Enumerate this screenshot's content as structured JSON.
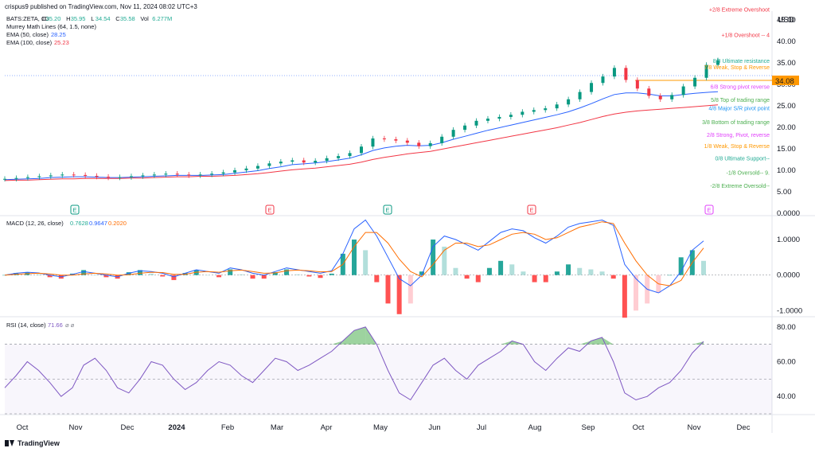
{
  "header": {
    "publisher_line": "crispus9 published on TradingView.com, Nov 11, 2024 08:02 UTC+3"
  },
  "legend": {
    "symbol": "BATS:ZETA, 1D",
    "ohlc": [
      {
        "label": "O",
        "value": "35.20"
      },
      {
        "label": "H",
        "value": "35.95"
      },
      {
        "label": "L",
        "value": "34.54"
      },
      {
        "label": "C",
        "value": "35.58"
      },
      {
        "label": "Vol",
        "value": "6.277M"
      }
    ],
    "murrey": "Murrey Math Lines (64, 1.5, none)",
    "ema50_label": "EMA (50, close)",
    "ema50_value": "28.25",
    "ema100_label": "EMA (100, close)",
    "ema100_value": "25.23"
  },
  "currency": "USD",
  "price_tag": "34.08",
  "footer": {
    "brand": "TradingView"
  },
  "murrey_levels": [
    {
      "label": "+2/8 Extreme Overshoot",
      "color": "#f23645"
    },
    {
      "label": "+1/8 Overshoot --  4",
      "color": "#f23645"
    },
    {
      "label": "8/8 Ultimate resistance",
      "color": "#22ab94"
    },
    {
      "label": "7/8 Weak, Stop & Reverse",
      "color": "#ff9800"
    },
    {
      "label": "6/8 Strong pivot reverse",
      "color": "#e040fb"
    },
    {
      "label": "5/8 Top of trading range",
      "color": "#4caf50"
    },
    {
      "label": "4/8 Major S/R pivot point",
      "color": "#2196f3"
    },
    {
      "label": "3/8 Bottom of trading range",
      "color": "#4caf50"
    },
    {
      "label": "2/8 Strong, Pivot, reverse",
      "color": "#e040fb"
    },
    {
      "label": "1/8 Weak, Stop & Reverse",
      "color": "#ff9800"
    },
    {
      "label": "0/8 Ultimate Support--",
      "color": "#22ab94"
    },
    {
      "label": "-1/8 Oversold--  9.",
      "color": "#4caf50"
    },
    {
      "label": "-2/8 Extreme Oversold--",
      "color": "#4caf50"
    }
  ],
  "macd": {
    "label": "MACD (12, 26, close)",
    "v1": "0.7628",
    "v2": "0.9647",
    "v3": "0.2020",
    "c1": "#22ab94",
    "c2": "#2962ff",
    "c3": "#ff6d00"
  },
  "rsi": {
    "label": "RSI (14, close)",
    "value": "71.66",
    "extra": "⌀  ⌀",
    "color": "#7e57c2"
  },
  "earnings_markers": [
    "E",
    "E",
    "E",
    "E",
    "E"
  ],
  "chart_data": [
    {
      "type": "candlestick",
      "title": "BATS:ZETA, 1D",
      "x_ticks": [
        "Oct",
        "Nov",
        "Dec",
        "2024",
        "Feb",
        "Mar",
        "Apr",
        "May",
        "Jun",
        "Jul",
        "Aug",
        "Sep",
        "Oct",
        "Nov",
        "Dec"
      ],
      "y_ticks": [
        "45.00",
        "40.00",
        "35.00",
        "30.00",
        "25.00",
        "20.00",
        "15.00",
        "10.00",
        "5.00",
        "0.0000"
      ],
      "ylim": [
        0,
        47
      ],
      "series": [
        {
          "name": "Price",
          "values": [
            8,
            8.2,
            8.4,
            8.6,
            8.8,
            9,
            8.9,
            8.7,
            8.5,
            8.3,
            8.4,
            8.6,
            8.8,
            9,
            9.2,
            9,
            8.8,
            9,
            9.2,
            9.5,
            10,
            10.4,
            11,
            11.6,
            12,
            12.3,
            11.8,
            12.2,
            12.8,
            13.3,
            14,
            15.5,
            17.4,
            17.2,
            16.9,
            16.4,
            15.6,
            16.3,
            17.8,
            19.4,
            20.4,
            21.5,
            22,
            22.4,
            22.9,
            23.6,
            24,
            24.4,
            25.3,
            26.5,
            28.2,
            30.3,
            31.8,
            33.8,
            31,
            29,
            27.3,
            26.5,
            27.5,
            29.5,
            31.5,
            34.5,
            35.58
          ]
        },
        {
          "name": "EMA (50, close)",
          "values": [
            7.8,
            7.9,
            8.0,
            8.1,
            8.3,
            8.4,
            8.5,
            8.5,
            8.4,
            8.3,
            8.3,
            8.4,
            8.5,
            8.6,
            8.7,
            8.8,
            8.8,
            8.8,
            8.9,
            9.0,
            9.3,
            9.6,
            9.9,
            10.4,
            10.8,
            11.3,
            11.5,
            11.7,
            12.0,
            12.4,
            12.8,
            13.6,
            14.6,
            15.2,
            15.6,
            15.8,
            15.7,
            15.8,
            16.4,
            17.2,
            17.9,
            18.6,
            19.3,
            19.9,
            20.5,
            21.1,
            21.7,
            22.3,
            22.9,
            23.6,
            24.5,
            25.5,
            26.6,
            27.6,
            28.0,
            28.0,
            27.7,
            27.3,
            27.3,
            27.6,
            27.9,
            28.1,
            28.25
          ]
        },
        {
          "name": "EMA (100, close)",
          "values": [
            7.6,
            7.7,
            7.7,
            7.8,
            7.9,
            8.0,
            8.0,
            8.1,
            8.1,
            8.1,
            8.1,
            8.2,
            8.2,
            8.3,
            8.4,
            8.5,
            8.5,
            8.6,
            8.6,
            8.7,
            8.8,
            9.0,
            9.2,
            9.5,
            9.8,
            10.1,
            10.3,
            10.5,
            10.8,
            11.1,
            11.4,
            11.9,
            12.5,
            13.0,
            13.4,
            13.8,
            14.1,
            14.4,
            14.9,
            15.4,
            15.9,
            16.4,
            16.9,
            17.4,
            17.9,
            18.4,
            18.9,
            19.4,
            19.9,
            20.5,
            21.1,
            21.8,
            22.5,
            23.1,
            23.5,
            23.8,
            24.0,
            24.2,
            24.4,
            24.6,
            24.8,
            25.0,
            25.23
          ]
        }
      ],
      "murrey_levels_values": [
        47.5,
        41.5,
        35.5,
        34.08,
        29.5,
        26.5,
        24.5,
        21.3,
        18.3,
        15.7,
        12.9,
        9.5,
        6.5
      ]
    },
    {
      "type": "line+bar",
      "title": "MACD (12, 26, close)",
      "y_ticks": [
        "1.0000",
        "0.0000",
        "-1.0000"
      ],
      "ylim": [
        -1.15,
        1.65
      ],
      "series": [
        {
          "name": "MACD",
          "values": [
            0.0,
            0.05,
            0.08,
            0.06,
            0.0,
            -0.05,
            0.02,
            0.1,
            0.05,
            0.0,
            -0.05,
            0.05,
            0.12,
            0.1,
            0.05,
            -0.05,
            0.05,
            0.15,
            0.1,
            0.05,
            0.2,
            0.15,
            0.05,
            0.0,
            0.1,
            0.2,
            0.15,
            0.1,
            0.05,
            0.12,
            0.6,
            1.3,
            1.55,
            1.1,
            0.5,
            -0.1,
            -0.3,
            0.0,
            0.8,
            1.1,
            1.0,
            0.85,
            0.7,
            0.95,
            1.2,
            1.3,
            1.25,
            1.05,
            0.9,
            1.1,
            1.35,
            1.45,
            1.5,
            1.55,
            1.4,
            0.3,
            -0.1,
            -0.4,
            -0.5,
            -0.3,
            0.1,
            0.7,
            0.96
          ]
        },
        {
          "name": "Signal",
          "values": [
            0.0,
            0.02,
            0.04,
            0.05,
            0.03,
            0.0,
            0.0,
            0.03,
            0.05,
            0.03,
            0.0,
            0.01,
            0.05,
            0.08,
            0.07,
            0.02,
            0.02,
            0.08,
            0.1,
            0.08,
            0.12,
            0.14,
            0.1,
            0.05,
            0.06,
            0.12,
            0.14,
            0.12,
            0.09,
            0.1,
            0.3,
            0.8,
            1.2,
            1.2,
            0.9,
            0.45,
            0.1,
            -0.05,
            0.3,
            0.7,
            0.9,
            0.9,
            0.8,
            0.85,
            1.0,
            1.15,
            1.2,
            1.15,
            1.0,
            1.05,
            1.2,
            1.35,
            1.42,
            1.5,
            1.45,
            0.9,
            0.4,
            0.0,
            -0.25,
            -0.3,
            -0.15,
            0.35,
            0.76
          ]
        }
      ]
    },
    {
      "type": "line",
      "title": "RSI (14, close)",
      "y_ticks": [
        "80.00",
        "60.00",
        "40.00"
      ],
      "ylim": [
        30,
        85
      ],
      "bands": [
        70,
        50,
        30
      ],
      "series": [
        {
          "name": "RSI",
          "values": [
            45,
            52,
            60,
            55,
            48,
            40,
            45,
            58,
            62,
            55,
            45,
            42,
            50,
            60,
            58,
            50,
            44,
            48,
            55,
            60,
            58,
            52,
            48,
            55,
            62,
            60,
            55,
            58,
            62,
            66,
            72,
            78,
            80,
            70,
            55,
            42,
            38,
            48,
            58,
            62,
            55,
            50,
            58,
            62,
            66,
            72,
            70,
            60,
            55,
            62,
            68,
            66,
            72,
            74,
            60,
            42,
            38,
            40,
            45,
            48,
            55,
            65,
            71.66
          ]
        }
      ]
    }
  ]
}
